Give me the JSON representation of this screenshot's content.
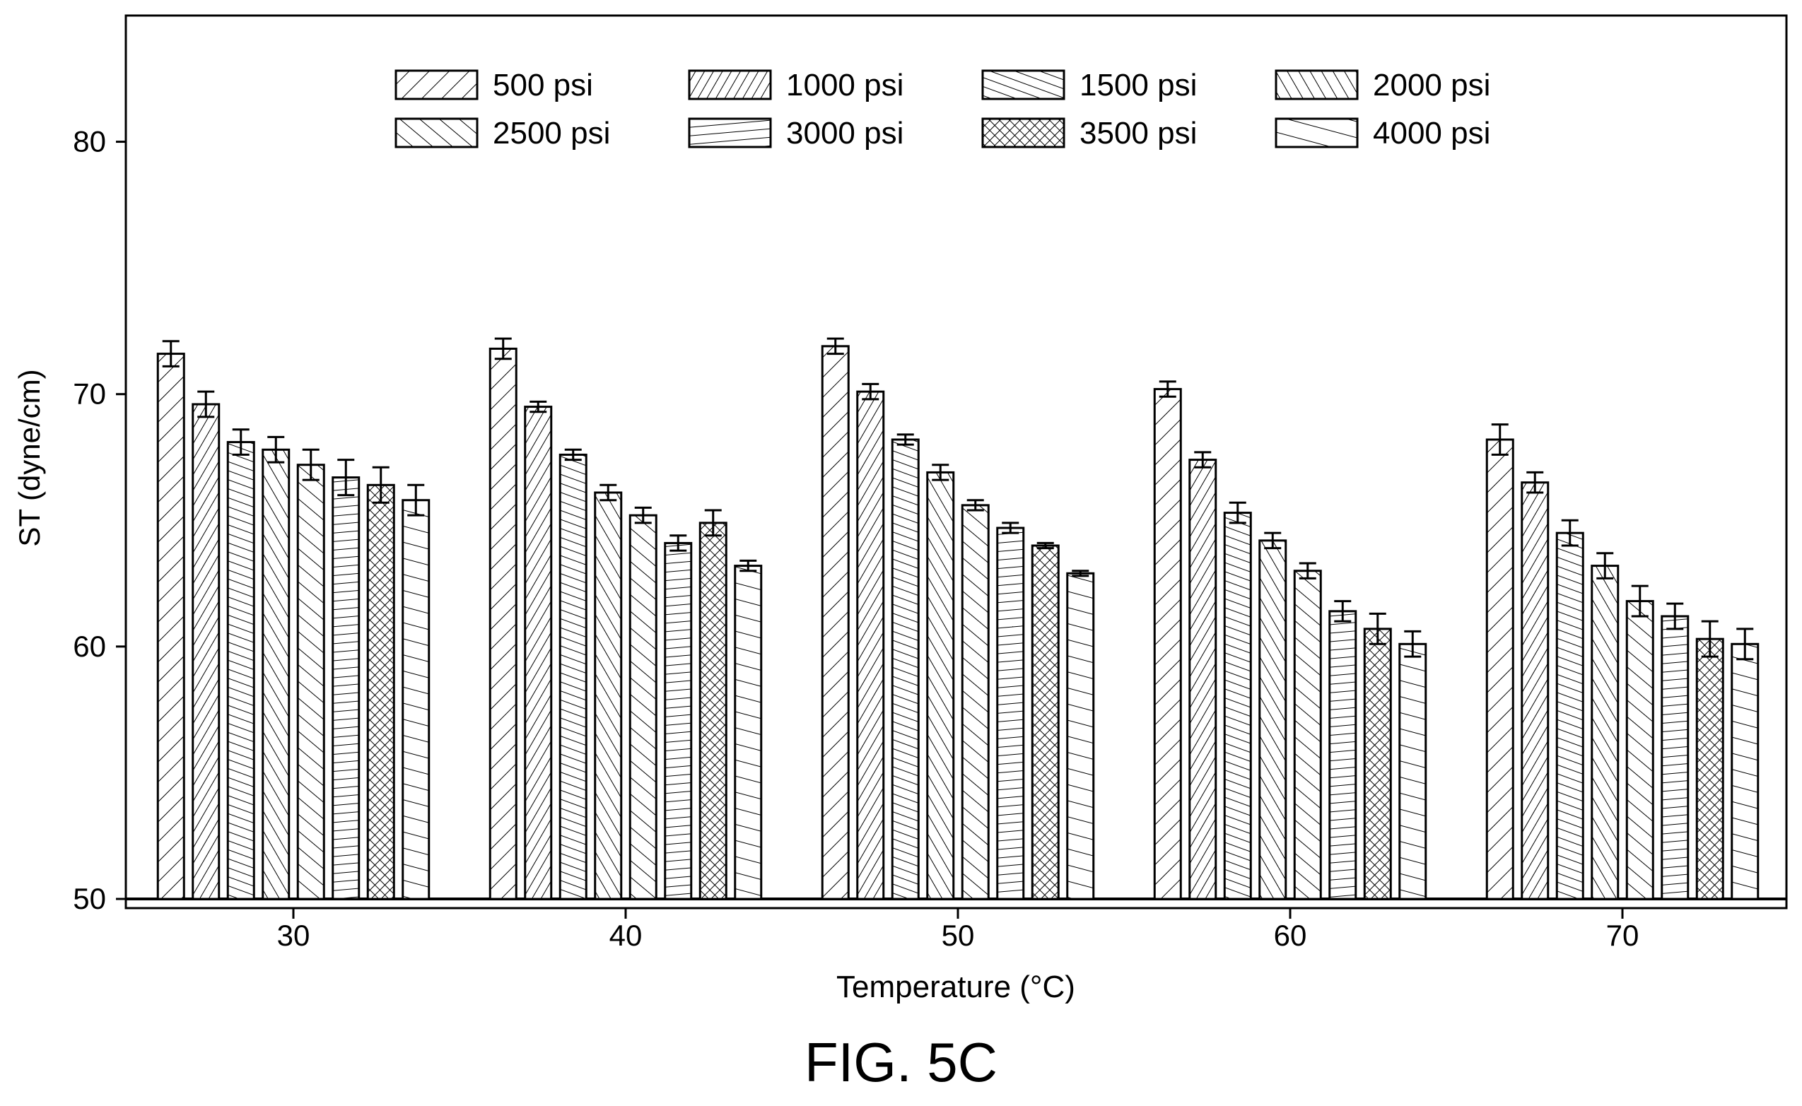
{
  "figure_label": "FIG. 5C",
  "chart_data": {
    "type": "bar",
    "title": "",
    "xlabel": "Temperature (°C)",
    "ylabel": "ST (dyne/cm)",
    "ylim": [
      50,
      85
    ],
    "yticks": [
      50,
      60,
      70,
      80
    ],
    "grid": false,
    "legend_position": "top",
    "categories": [
      "30",
      "40",
      "50",
      "60",
      "70"
    ],
    "series": [
      {
        "name": "500 psi",
        "values": [
          71.6,
          71.8,
          71.9,
          70.2,
          68.2
        ],
        "errors": [
          0.5,
          0.4,
          0.3,
          0.3,
          0.6
        ]
      },
      {
        "name": "1000 psi",
        "values": [
          69.6,
          69.5,
          70.1,
          67.4,
          66.5
        ],
        "errors": [
          0.5,
          0.2,
          0.3,
          0.3,
          0.4
        ]
      },
      {
        "name": "1500 psi",
        "values": [
          68.1,
          67.6,
          68.2,
          65.3,
          64.5
        ],
        "errors": [
          0.5,
          0.2,
          0.2,
          0.4,
          0.5
        ]
      },
      {
        "name": "2000 psi",
        "values": [
          67.8,
          66.1,
          66.9,
          64.2,
          63.2
        ],
        "errors": [
          0.5,
          0.3,
          0.3,
          0.3,
          0.5
        ]
      },
      {
        "name": "2500 psi",
        "values": [
          67.2,
          65.2,
          65.6,
          63.0,
          61.8
        ],
        "errors": [
          0.6,
          0.3,
          0.2,
          0.3,
          0.6
        ]
      },
      {
        "name": "3000 psi",
        "values": [
          66.7,
          64.1,
          64.7,
          61.4,
          61.2
        ],
        "errors": [
          0.7,
          0.3,
          0.2,
          0.4,
          0.5
        ]
      },
      {
        "name": "3500 psi",
        "values": [
          66.4,
          64.9,
          64.0,
          60.7,
          60.3
        ],
        "errors": [
          0.7,
          0.5,
          0.1,
          0.6,
          0.7
        ]
      },
      {
        "name": "4000 psi",
        "values": [
          65.8,
          63.2,
          62.9,
          60.1,
          60.1
        ],
        "errors": [
          0.6,
          0.2,
          0.1,
          0.5,
          0.6
        ]
      }
    ],
    "patterns": [
      "diag-up-wide",
      "diag-up-dense",
      "shallow-up",
      "diag-down",
      "diag-down-wide",
      "horizontal",
      "crosshatch",
      "shallow-up-wide"
    ]
  }
}
